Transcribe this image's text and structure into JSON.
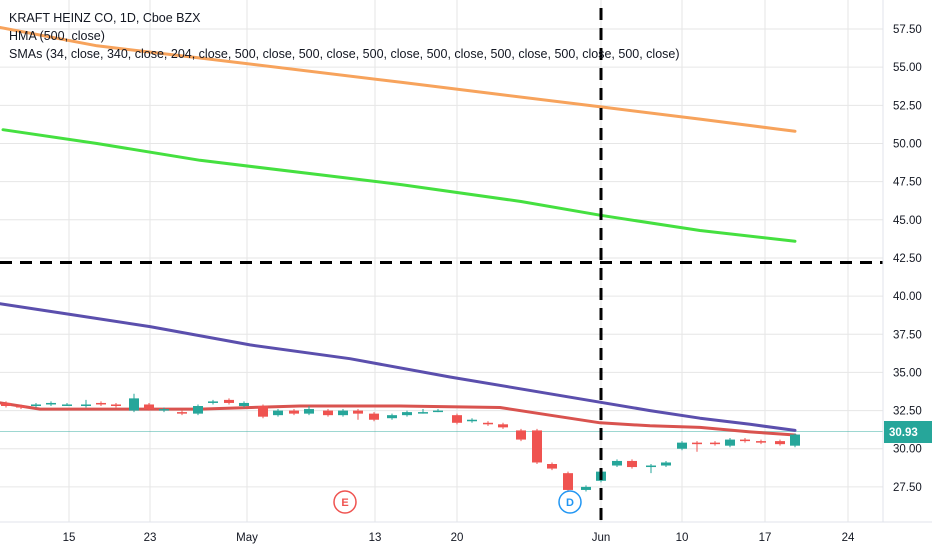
{
  "legend": {
    "title": "KRAFT HEINZ CO, 1D, Cboe BZX",
    "hma": "HMA (500, close)",
    "smas": "SMAs (34, close, 340, close, 204, close, 500, close, 500, close, 500, close, 500, close, 500, close, 500, close, 500, close)"
  },
  "price_label": "30.93",
  "colors": {
    "up": "#26a69a",
    "down": "#ef5350",
    "orange": "#f7a35c",
    "green": "#45e040",
    "purple": "#5b4fad",
    "red": "#d9534f",
    "grid": "#e6e6e6"
  },
  "chart_data": {
    "type": "candlestick",
    "ylim": [
      25.2,
      59.4
    ],
    "y_ticks": [
      "27.50",
      "30.00",
      "32.50",
      "35.00",
      "37.50",
      "40.00",
      "42.50",
      "45.00",
      "47.50",
      "50.00",
      "52.50",
      "55.00",
      "57.50"
    ],
    "x_ticks": [
      "15",
      "23",
      "May",
      "13",
      "20",
      "Jun",
      "10",
      "17",
      "24"
    ],
    "last_price": 30.93,
    "crosshair": {
      "price": 42.2,
      "date": "Jun"
    },
    "events": [
      {
        "label": "E",
        "date": "May 11"
      },
      {
        "label": "D",
        "date": "May 29"
      }
    ],
    "series": [
      {
        "name": "orange",
        "values": [
          [
            0,
            57.6
          ],
          [
            97,
            56.4
          ],
          [
            200,
            55.6
          ],
          [
            402,
            54.0
          ],
          [
            501,
            53.2
          ],
          [
            600,
            52.4
          ],
          [
            700,
            51.6
          ],
          [
            795,
            50.8
          ]
        ]
      },
      {
        "name": "green",
        "values": [
          [
            3,
            50.9
          ],
          [
            97,
            50.0
          ],
          [
            200,
            48.9
          ],
          [
            402,
            47.3
          ],
          [
            521,
            46.2
          ],
          [
            600,
            45.3
          ],
          [
            700,
            44.3
          ],
          [
            795,
            43.6
          ]
        ]
      },
      {
        "name": "purple",
        "values": [
          [
            0,
            39.5
          ],
          [
            70,
            38.8
          ],
          [
            150,
            38.0
          ],
          [
            250,
            36.8
          ],
          [
            350,
            35.9
          ],
          [
            450,
            34.7
          ],
          [
            550,
            33.6
          ],
          [
            650,
            32.5
          ],
          [
            700,
            32.0
          ],
          [
            750,
            31.6
          ],
          [
            795,
            31.2
          ]
        ]
      },
      {
        "name": "red",
        "values": [
          [
            0,
            33.0
          ],
          [
            40,
            32.6
          ],
          [
            200,
            32.6
          ],
          [
            300,
            32.8
          ],
          [
            400,
            32.8
          ],
          [
            500,
            32.7
          ],
          [
            550,
            32.2
          ],
          [
            600,
            31.7
          ],
          [
            650,
            31.5
          ],
          [
            700,
            31.4
          ],
          [
            750,
            31.1
          ],
          [
            795,
            30.9
          ]
        ]
      }
    ],
    "candles": [
      [
        6,
        33.0,
        32.8,
        33.1,
        32.7
      ],
      [
        21,
        32.8,
        32.7,
        32.9,
        32.6
      ],
      [
        36,
        32.8,
        32.9,
        33.0,
        32.7
      ],
      [
        51,
        32.9,
        33.0,
        33.1,
        32.8
      ],
      [
        67,
        32.9,
        32.9,
        33.0,
        32.8
      ],
      [
        86,
        32.8,
        32.9,
        33.2,
        32.7
      ],
      [
        101,
        33.0,
        32.9,
        33.1,
        32.8
      ],
      [
        116,
        32.9,
        32.8,
        33.0,
        32.7
      ],
      [
        134,
        32.5,
        33.3,
        33.6,
        32.4
      ],
      [
        149,
        32.9,
        32.6,
        33.0,
        32.5
      ],
      [
        164,
        32.5,
        32.6,
        32.7,
        32.4
      ],
      [
        182,
        32.4,
        32.3,
        32.5,
        32.2
      ],
      [
        198,
        32.3,
        32.8,
        32.9,
        32.2
      ],
      [
        213,
        33.0,
        33.1,
        33.2,
        32.9
      ],
      [
        229,
        33.2,
        33.0,
        33.3,
        32.9
      ],
      [
        244,
        32.8,
        33.0,
        33.1,
        32.7
      ],
      [
        263,
        32.8,
        32.1,
        32.9,
        32.0
      ],
      [
        278,
        32.2,
        32.5,
        32.6,
        32.1
      ],
      [
        294,
        32.5,
        32.3,
        32.6,
        32.2
      ],
      [
        309,
        32.3,
        32.6,
        32.8,
        32.2
      ],
      [
        328,
        32.5,
        32.2,
        32.6,
        32.1
      ],
      [
        343,
        32.2,
        32.5,
        32.6,
        32.1
      ],
      [
        358,
        32.5,
        32.3,
        32.6,
        31.9
      ],
      [
        374,
        32.3,
        31.9,
        32.4,
        31.8
      ],
      [
        392,
        32.0,
        32.2,
        32.3,
        31.9
      ],
      [
        407,
        32.2,
        32.4,
        32.5,
        32.1
      ],
      [
        423,
        32.4,
        32.4,
        32.6,
        32.3
      ],
      [
        438,
        32.4,
        32.5,
        32.6,
        32.4
      ],
      [
        457,
        32.2,
        31.7,
        32.3,
        31.6
      ],
      [
        472,
        31.8,
        31.9,
        32.0,
        31.7
      ],
      [
        488,
        31.7,
        31.6,
        31.8,
        31.5
      ],
      [
        503,
        31.6,
        31.4,
        31.7,
        31.3
      ],
      [
        521,
        31.2,
        30.6,
        31.3,
        30.5
      ],
      [
        537,
        31.2,
        29.1,
        31.3,
        29.0
      ],
      [
        552,
        29.0,
        28.7,
        29.1,
        28.6
      ],
      [
        568,
        28.4,
        27.3,
        28.5,
        27.2
      ],
      [
        586,
        27.3,
        27.5,
        27.6,
        27.2
      ],
      [
        601,
        27.9,
        28.5,
        28.6,
        27.8
      ],
      [
        617,
        28.9,
        29.2,
        29.3,
        28.8
      ],
      [
        632,
        29.2,
        28.8,
        29.3,
        28.7
      ],
      [
        651,
        28.8,
        28.9,
        29.0,
        28.4
      ],
      [
        666,
        28.9,
        29.1,
        29.2,
        28.8
      ],
      [
        682,
        30.0,
        30.4,
        30.5,
        29.9
      ],
      [
        697,
        30.4,
        30.3,
        30.5,
        29.8
      ],
      [
        715,
        30.4,
        30.3,
        30.5,
        30.2
      ],
      [
        730,
        30.2,
        30.6,
        30.7,
        30.1
      ],
      [
        745,
        30.6,
        30.5,
        30.7,
        30.4
      ],
      [
        761,
        30.5,
        30.4,
        30.6,
        30.3
      ],
      [
        780,
        30.5,
        30.3,
        30.6,
        30.2
      ],
      [
        795,
        30.2,
        30.93,
        31.0,
        30.1
      ]
    ]
  }
}
